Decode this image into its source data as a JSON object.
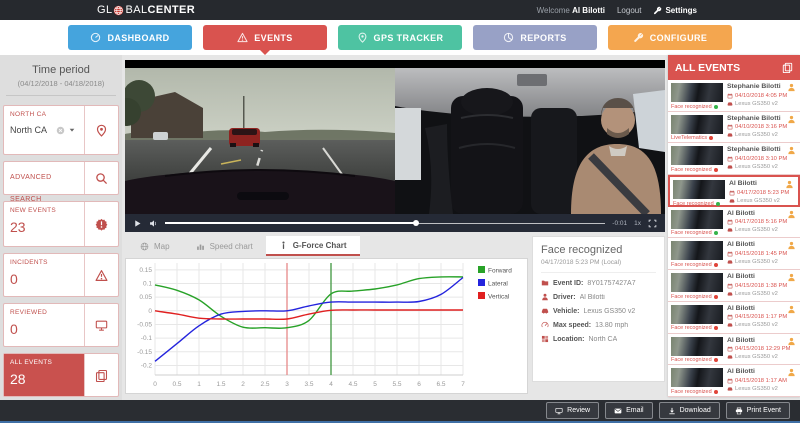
{
  "header": {
    "logo": {
      "pre": "GL",
      "mid": "BAL",
      "suffix": "CENTER"
    },
    "welcome_prefix": "Welcome",
    "user_name": "Al Bilotti",
    "logout_label": "Logout",
    "settings_label": "Settings"
  },
  "nav": {
    "tabs": [
      {
        "label": "DASHBOARD",
        "color": "#45a4dd",
        "icon": "gauge",
        "active": false
      },
      {
        "label": "EVENTS",
        "color": "#d9534f",
        "icon": "warning",
        "active": true
      },
      {
        "label": "GPS TRACKER",
        "color": "#4ec3a2",
        "icon": "map-pin",
        "active": false
      },
      {
        "label": "REPORTS",
        "color": "#98a1c6",
        "icon": "pie",
        "active": false
      },
      {
        "label": "CONFIGURE",
        "color": "#f4a64f",
        "icon": "wrench",
        "active": false
      }
    ]
  },
  "sidebar": {
    "time_period_label": "Time period",
    "time_period_range": "(04/12/2018 - 04/18/2018)",
    "location_label": "NORTH CA",
    "location_value": "North CA",
    "advanced_search_label": "ADVANCED SEARCH",
    "counters": [
      {
        "label": "NEW EVENTS",
        "value": "23",
        "icon": "badge",
        "active": false
      },
      {
        "label": "INCIDENTS",
        "value": "0",
        "icon": "warning",
        "active": false
      },
      {
        "label": "REVIEWED",
        "value": "0",
        "icon": "monitor",
        "active": false
      },
      {
        "label": "ALL EVENTS",
        "value": "28",
        "icon": "copy",
        "active": true
      }
    ]
  },
  "player": {
    "time_remaining": "-0:01",
    "speed": "1x",
    "progress_pct": 57
  },
  "content_tabs": [
    {
      "label": "Map",
      "icon": "globe",
      "active": false
    },
    {
      "label": "Speed chart",
      "icon": "bars",
      "active": false
    },
    {
      "label": "G-Force Chart",
      "icon": "gforce",
      "active": true
    }
  ],
  "chart_data": {
    "type": "line",
    "x": [
      0,
      0.5,
      1,
      1.5,
      2,
      2.5,
      3,
      3.5,
      4,
      4.5,
      5,
      5.5,
      6,
      6.5,
      7
    ],
    "series": [
      {
        "name": "Forward",
        "color": "#28a228",
        "values": [
          0.095,
          0.075,
          0.04,
          -0.02,
          -0.06,
          -0.062,
          -0.062,
          -0.035,
          0.062,
          0.072,
          0.08,
          0.095,
          0.118,
          0.124,
          0.124
        ]
      },
      {
        "name": "Lateral",
        "color": "#2424dd",
        "values": [
          -0.185,
          -0.12,
          -0.055,
          -0.012,
          -0.002,
          0,
          0,
          0.018,
          0.032,
          0.032,
          0.032,
          0.032,
          0.034,
          0.06,
          0.122
        ]
      },
      {
        "name": "Vertical",
        "color": "#e02020",
        "values": [
          0,
          -0.012,
          -0.027,
          -0.03,
          -0.03,
          -0.03,
          -0.03,
          -0.012,
          0.002,
          0.003,
          0.003,
          0.003,
          0.003,
          0.003,
          0.003
        ]
      }
    ],
    "y_ticks": [
      0.15,
      0.1,
      0.05,
      0,
      -0.05,
      -0.1,
      -0.15,
      -0.2
    ],
    "x_ticks": [
      0,
      0.5,
      1,
      1.5,
      2,
      2.5,
      3,
      3.5,
      4,
      4.5,
      5,
      5.5,
      6,
      6.5,
      7
    ],
    "ylim": [
      -0.235,
      0.175
    ],
    "xlim": [
      0,
      7
    ],
    "grid": true,
    "legend_position": "right",
    "markers": [
      {
        "x": 3,
        "color": "#e89090"
      },
      {
        "x": 4,
        "color": "#4d9e4d"
      }
    ],
    "title": "",
    "xlabel": "",
    "ylabel": ""
  },
  "event_details": {
    "title": "Face recognized",
    "timestamp": "04/17/2018 5:23 PM (Local)",
    "fields": [
      {
        "label": "Event ID:",
        "value": "8Y01757427A7",
        "icon": "folder"
      },
      {
        "label": "Driver:",
        "value": "Al Bilotti",
        "icon": "person"
      },
      {
        "label": "Vehicle:",
        "value": "Lexus GS350 v2",
        "icon": "car"
      },
      {
        "label": "Max speed:",
        "value": "13.80 mph",
        "icon": "speedo"
      },
      {
        "label": "Location:",
        "value": "North CA",
        "icon": "grid-map"
      }
    ]
  },
  "events_panel": {
    "title": "ALL EVENTS",
    "items": [
      {
        "name": "Stephanie Bilotti",
        "date": "04/10/2018 4:05 PM",
        "vehicle": "Lexus GS350 v2",
        "type": "Face recognized",
        "type_color": "green",
        "selected": false
      },
      {
        "name": "Stephanie Bilotti",
        "date": "04/10/2018 3:16 PM",
        "vehicle": "Lexus GS350 v2",
        "type": "LiveTelematics",
        "type_color": "red",
        "selected": false
      },
      {
        "name": "Stephanie Bilotti",
        "date": "04/10/2018 3:10 PM",
        "vehicle": "Lexus GS350 v2",
        "type": "Face recognized",
        "type_color": "red",
        "selected": false
      },
      {
        "name": "Al Bilotti",
        "date": "04/17/2018 5:23 PM",
        "vehicle": "Lexus GS350 v2",
        "type": "Face recognized",
        "type_color": "green",
        "selected": true
      },
      {
        "name": "Al Bilotti",
        "date": "04/17/2018 5:16 PM",
        "vehicle": "Lexus GS350 v2",
        "type": "Face recognized",
        "type_color": "green",
        "selected": false
      },
      {
        "name": "Al Bilotti",
        "date": "04/15/2018 1:45 PM",
        "vehicle": "Lexus GS350 v2",
        "type": "Face recognized",
        "type_color": "red",
        "selected": false
      },
      {
        "name": "Al Bilotti",
        "date": "04/15/2018 1:38 PM",
        "vehicle": "Lexus GS350 v2",
        "type": "Face recognized",
        "type_color": "red",
        "selected": false
      },
      {
        "name": "Al Bilotti",
        "date": "04/15/2018 1:17 PM",
        "vehicle": "Lexus GS350 v2",
        "type": "Face recognized",
        "type_color": "red",
        "selected": false
      },
      {
        "name": "Al Bilotti",
        "date": "04/15/2018 12:29 PM",
        "vehicle": "Lexus GS350 v2",
        "type": "Face recognized",
        "type_color": "red",
        "selected": false
      },
      {
        "name": "Al Bilotti",
        "date": "04/15/2018 1:17 AM",
        "vehicle": "Lexus GS350 v2",
        "type": "Face recognized",
        "type_color": "red",
        "selected": false
      },
      {
        "name": "Al Bilotti",
        "date": "",
        "vehicle": "",
        "type": "",
        "type_color": "",
        "selected": false
      }
    ]
  },
  "footer": {
    "buttons": [
      {
        "label": "Review",
        "icon": "monitor"
      },
      {
        "label": "Email",
        "icon": "envelope"
      },
      {
        "label": "Download",
        "icon": "download"
      },
      {
        "label": "Print Event",
        "icon": "printer"
      }
    ]
  }
}
